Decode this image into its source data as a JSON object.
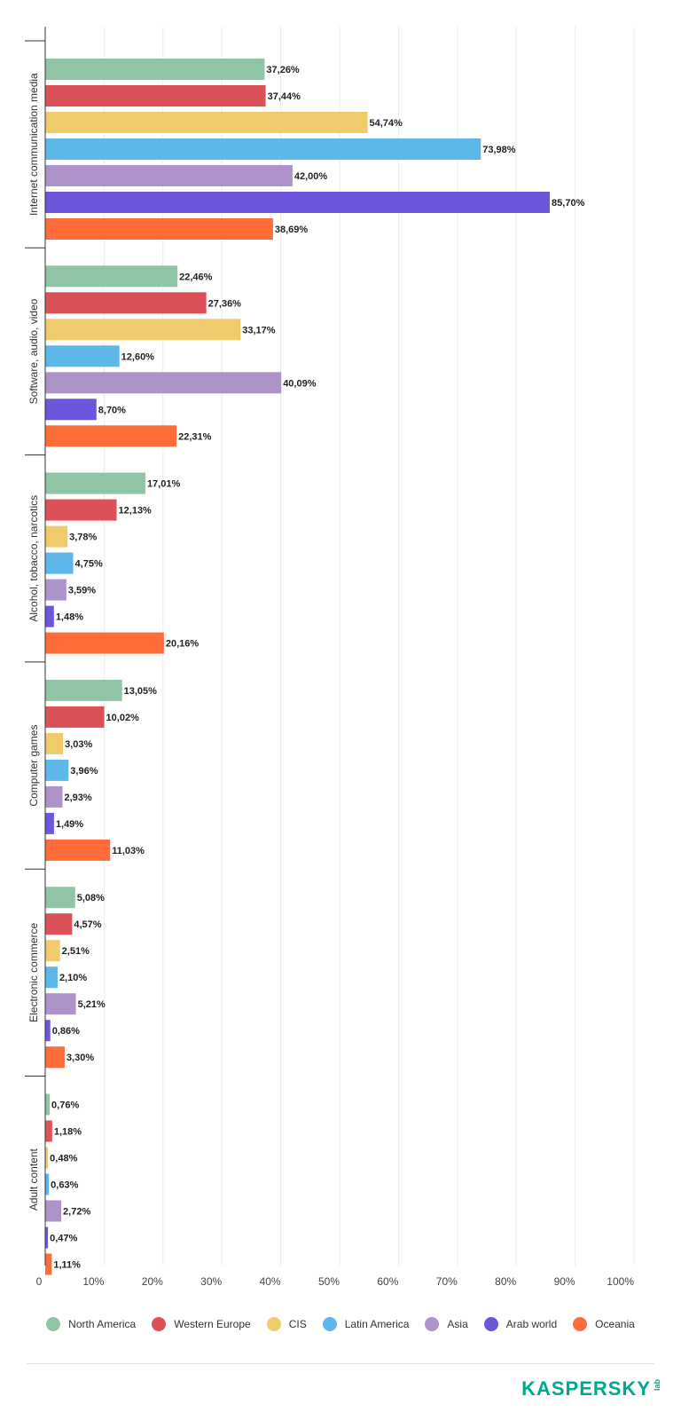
{
  "chart_data": {
    "type": "bar",
    "orientation": "horizontal",
    "categories": [
      "Internet communication media",
      "Software, audio, video",
      "Alcohol, tobacco, narcotics",
      "Computer games",
      "Electronic commerce",
      "Adult content"
    ],
    "series": [
      {
        "name": "North America",
        "color": "#8fc4a4",
        "values": [
          37.26,
          22.46,
          17.01,
          13.05,
          5.08,
          0.76
        ],
        "labels": [
          "37,26%",
          "22,46%",
          "17,01%",
          "13,05%",
          "5,08%",
          "0,76%"
        ]
      },
      {
        "name": "Western Europe",
        "color": "#dc5158",
        "values": [
          37.44,
          27.36,
          12.13,
          10.02,
          4.57,
          1.18
        ],
        "labels": [
          "37,44%",
          "27,36%",
          "12,13%",
          "10,02%",
          "4,57%",
          "1,18%"
        ]
      },
      {
        "name": "CIS",
        "color": "#f0cb6c",
        "values": [
          54.74,
          33.17,
          3.78,
          3.03,
          2.51,
          0.48
        ],
        "labels": [
          "54,74%",
          "33,17%",
          "3,78%",
          "3,03%",
          "2,51%",
          "0,48%"
        ]
      },
      {
        "name": "Latin America",
        "color": "#5db7e8",
        "values": [
          73.98,
          12.6,
          4.75,
          3.96,
          2.1,
          0.63
        ],
        "labels": [
          "73,98%",
          "12,60%",
          "4,75%",
          "3,96%",
          "2,10%",
          "0,63%"
        ]
      },
      {
        "name": "Asia",
        "color": "#ad93c9",
        "values": [
          42.0,
          40.09,
          3.59,
          2.93,
          5.21,
          2.72
        ],
        "labels": [
          "42,00%",
          "40,09%",
          "3,59%",
          "2,93%",
          "5,21%",
          "2,72%"
        ]
      },
      {
        "name": "Arab world",
        "color": "#6d55dc",
        "values": [
          85.7,
          8.7,
          1.48,
          1.49,
          0.86,
          0.47
        ],
        "labels": [
          "85,70%",
          "8,70%",
          "1,48%",
          "1,49%",
          "0,86%",
          "0,47%"
        ]
      },
      {
        "name": "Oceania",
        "color": "#fe6c3a",
        "values": [
          38.69,
          22.31,
          20.16,
          11.03,
          3.3,
          1.11
        ],
        "labels": [
          "38,69%",
          "22,31%",
          "20,16%",
          "11,03%",
          "3,30%",
          "1,11%"
        ]
      }
    ],
    "xlim": [
      0,
      100
    ],
    "x_ticks": [
      "0",
      "10%",
      "20%",
      "30%",
      "40%",
      "50%",
      "60%",
      "70%",
      "80%",
      "90%",
      "100%"
    ],
    "grid": true,
    "legend": "bottom"
  },
  "brand": {
    "name": "KASPERSKY",
    "sub": "lab"
  }
}
